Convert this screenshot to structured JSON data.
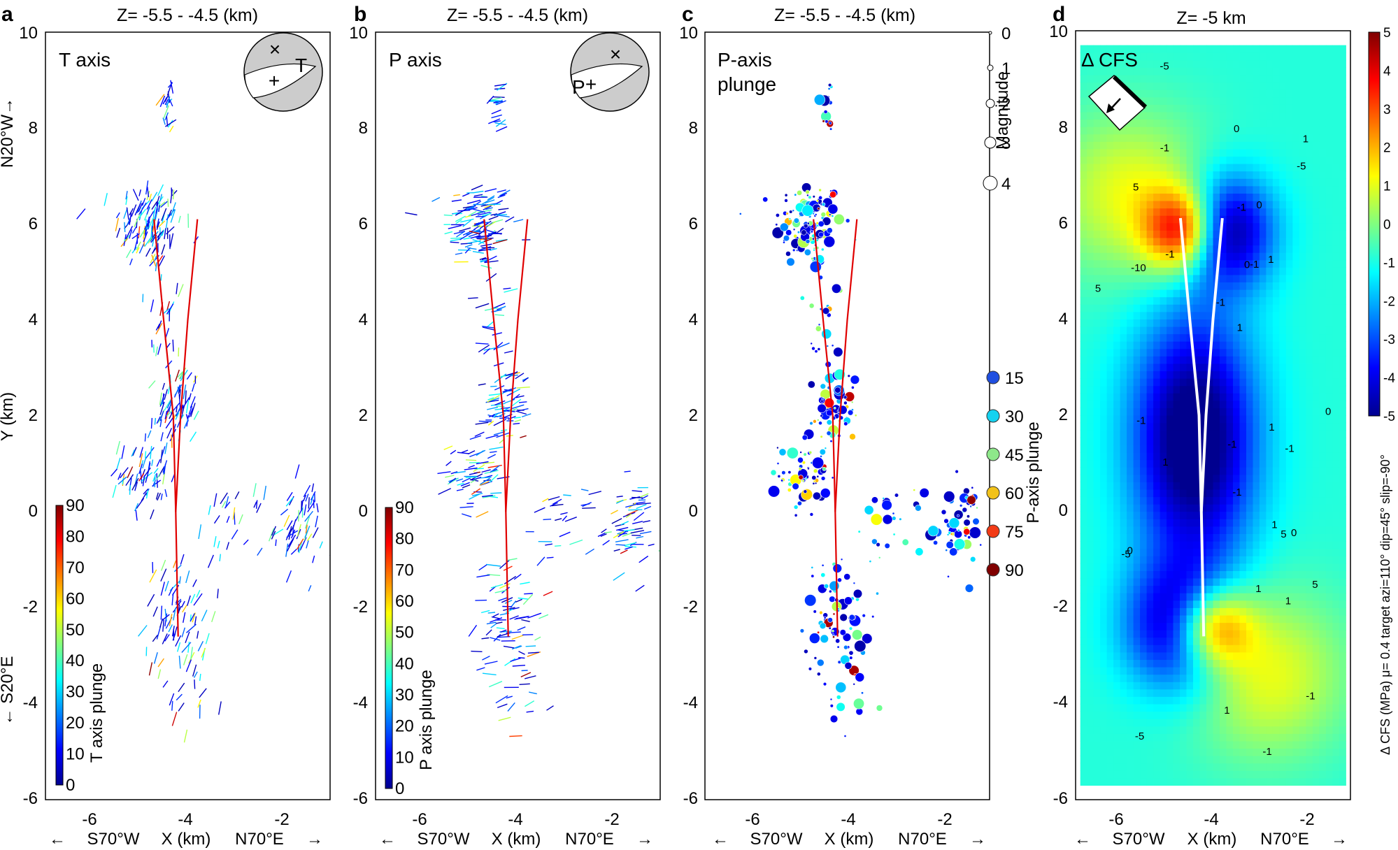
{
  "figure": {
    "panels": [
      {
        "letter": "a",
        "title": "Z= -5.5 - -4.5 (km)",
        "inner_label": "T axis",
        "beachball_label": "T",
        "colorbar_label": "T axis plunge",
        "colorbar_ticks": [
          "0",
          "10",
          "20",
          "30",
          "40",
          "50",
          "60",
          "70",
          "80",
          "90"
        ],
        "ylabel": "Y (km)",
        "ydir_top": "N20°W→",
        "ydir_bottom": "← S20°E",
        "x_left_dir": "←",
        "x_dir_left": "S70°W",
        "xlabel": "X (km)",
        "x_dir_right": "N70°E",
        "x_right_dir": "→"
      },
      {
        "letter": "b",
        "title": "Z= -5.5 - -4.5 (km)",
        "inner_label": "P axis",
        "beachball_label": "P",
        "colorbar_label": "P axis plunge",
        "colorbar_ticks": [
          "0",
          "10",
          "20",
          "30",
          "40",
          "50",
          "60",
          "70",
          "80",
          "90"
        ],
        "x_left_dir": "←",
        "x_dir_left": "S70°W",
        "xlabel": "X (km)",
        "x_dir_right": "N70°E",
        "x_right_dir": "→"
      },
      {
        "letter": "c",
        "title": "Z= -5.5 - -4.5 (km)",
        "inner_label_1": "P-axis",
        "inner_label_2": "plunge",
        "magnitude_label": "Magnitude",
        "magnitude_ticks": [
          "0",
          "1",
          "2",
          "3",
          "4"
        ],
        "plunge_label": "P-axis plunge",
        "plunge_ticks": [
          "15",
          "30",
          "45",
          "60",
          "75",
          "90"
        ],
        "plunge_colors": [
          "#1f4fe0",
          "#14d2f0",
          "#8ee88a",
          "#f2c21a",
          "#f23b16",
          "#800000"
        ],
        "x_left_dir": "←",
        "x_dir_left": "S70°W",
        "xlabel": "X (km)",
        "x_dir_right": "N70°E",
        "x_right_dir": "→"
      },
      {
        "letter": "d",
        "title": "Z= -5 km",
        "inner_label": "Δ CFS",
        "colorbar_label": "Δ CFS (MPa) μ= 0.4 target azi=110° dip=45° slip=-90°",
        "colorbar_ticks": [
          "-5",
          "-4",
          "-3",
          "-2",
          "-1",
          "0",
          "1",
          "2",
          "3",
          "4",
          "5"
        ],
        "contour_labels": [
          "1",
          "0",
          "-1",
          "1",
          "-5",
          "5",
          "1",
          "-1",
          "1",
          "0",
          "-1",
          "0",
          "-5",
          "1",
          "-1",
          "-10",
          "5",
          "-1",
          "-5",
          "-1",
          "5",
          "1",
          "-1",
          "0",
          "1",
          "-1",
          "-1",
          "0",
          "1",
          "1",
          "-5",
          "5",
          "-1",
          "0",
          "1",
          "-1"
        ],
        "x_left_dir": "←",
        "x_dir_left": "S70°W",
        "xlabel": "X (km)",
        "x_dir_right": "N70°E",
        "x_right_dir": "→"
      }
    ]
  },
  "chart_data": {
    "type": "scatter",
    "x_ticks": [
      -6,
      -4,
      -2
    ],
    "y_ticks": [
      -6,
      -4,
      -2,
      0,
      2,
      4,
      6,
      8,
      10
    ],
    "xlim": [
      -6.9,
      -1.0
    ],
    "ylim": [
      -6,
      10
    ],
    "d_xlim": [
      -6.9,
      -1.0
    ],
    "d_ylim": [
      -6,
      10
    ],
    "fault_traces": [
      [
        [
          -4.65,
          6.1
        ],
        [
          -4.45,
          4.0
        ],
        [
          -4.25,
          2.0
        ],
        [
          -4.2,
          0.0
        ],
        [
          -4.15,
          -2.6
        ]
      ],
      [
        [
          -3.75,
          6.1
        ],
        [
          -3.95,
          4.0
        ],
        [
          -4.1,
          2.0
        ],
        [
          -4.2,
          0.0
        ]
      ]
    ],
    "event_clusters": [
      {
        "x": -4.75,
        "y": 6.0,
        "sx": 0.35,
        "sy": 0.45,
        "n": 130
      },
      {
        "x": -4.35,
        "y": 8.5,
        "sx": 0.08,
        "sy": 0.3,
        "n": 20
      },
      {
        "x": -4.15,
        "y": 2.2,
        "sx": 0.22,
        "sy": 0.45,
        "n": 70
      },
      {
        "x": -4.85,
        "y": 0.8,
        "sx": 0.25,
        "sy": 0.45,
        "n": 70
      },
      {
        "x": -4.15,
        "y": -2.2,
        "sx": 0.35,
        "sy": 0.6,
        "n": 80
      },
      {
        "x": -1.65,
        "y": -0.3,
        "sx": 0.25,
        "sy": 0.45,
        "n": 60
      },
      {
        "x": -3.0,
        "y": -0.2,
        "sx": 0.3,
        "sy": 0.3,
        "n": 25
      },
      {
        "x": -4.4,
        "y": 4.0,
        "sx": 0.3,
        "sy": 0.6,
        "n": 25
      },
      {
        "x": -3.9,
        "y": -4.0,
        "sx": 0.35,
        "sy": 0.4,
        "n": 15
      }
    ],
    "cfs_lobes": [
      {
        "x": -4.6,
        "y": 5.85,
        "amp": 5.0,
        "sx": 0.55,
        "sy": 0.6
      },
      {
        "x": -3.7,
        "y": 5.85,
        "amp": -4.5,
        "sx": 0.7,
        "sy": 0.8
      },
      {
        "x": -4.0,
        "y": -2.4,
        "amp": 5.0,
        "sx": 0.6,
        "sy": 0.6
      },
      {
        "x": -4.6,
        "y": -2.4,
        "amp": -4.5,
        "sx": 0.8,
        "sy": 0.9
      },
      {
        "x": -4.35,
        "y": 1.5,
        "amp": -5.0,
        "sx": 0.9,
        "sy": 1.8
      },
      {
        "x": -5.7,
        "y": 6.6,
        "amp": 2.0,
        "sx": 1.2,
        "sy": 1.2
      },
      {
        "x": -2.8,
        "y": -3.4,
        "amp": 2.0,
        "sx": 1.2,
        "sy": 1.2
      }
    ]
  }
}
